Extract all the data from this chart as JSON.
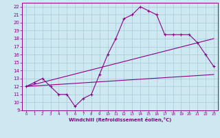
{
  "xlabel": "Windchill (Refroidissement éolien,°C)",
  "bg_color": "#cde8f0",
  "grid_color": "#aac8d8",
  "line_color": "#880088",
  "axis_color": "#880088",
  "xlim": [
    -0.5,
    23.5
  ],
  "ylim": [
    9,
    22.5
  ],
  "xticks": [
    0,
    1,
    2,
    3,
    4,
    5,
    6,
    7,
    8,
    9,
    10,
    11,
    12,
    13,
    14,
    15,
    16,
    17,
    18,
    19,
    20,
    21,
    22,
    23
  ],
  "yticks": [
    9,
    10,
    11,
    12,
    13,
    14,
    15,
    16,
    17,
    18,
    19,
    20,
    21,
    22
  ],
  "curve1_x": [
    0,
    1,
    2,
    3,
    4,
    5,
    6,
    7,
    8,
    9,
    10,
    11,
    12,
    13,
    14,
    15,
    16,
    17,
    18,
    19,
    20,
    21,
    22,
    23
  ],
  "curve1_y": [
    12,
    12.5,
    13,
    12,
    11,
    11,
    9.5,
    10.5,
    11,
    13.5,
    16,
    18,
    20.5,
    21,
    22,
    21.5,
    21,
    18.5,
    18.5,
    18.5,
    18.5,
    17.5,
    16,
    14.5
  ],
  "curve2_x": [
    0,
    23
  ],
  "curve2_y": [
    12,
    13.5
  ],
  "curve3_x": [
    0,
    23
  ],
  "curve3_y": [
    12,
    18.0
  ]
}
